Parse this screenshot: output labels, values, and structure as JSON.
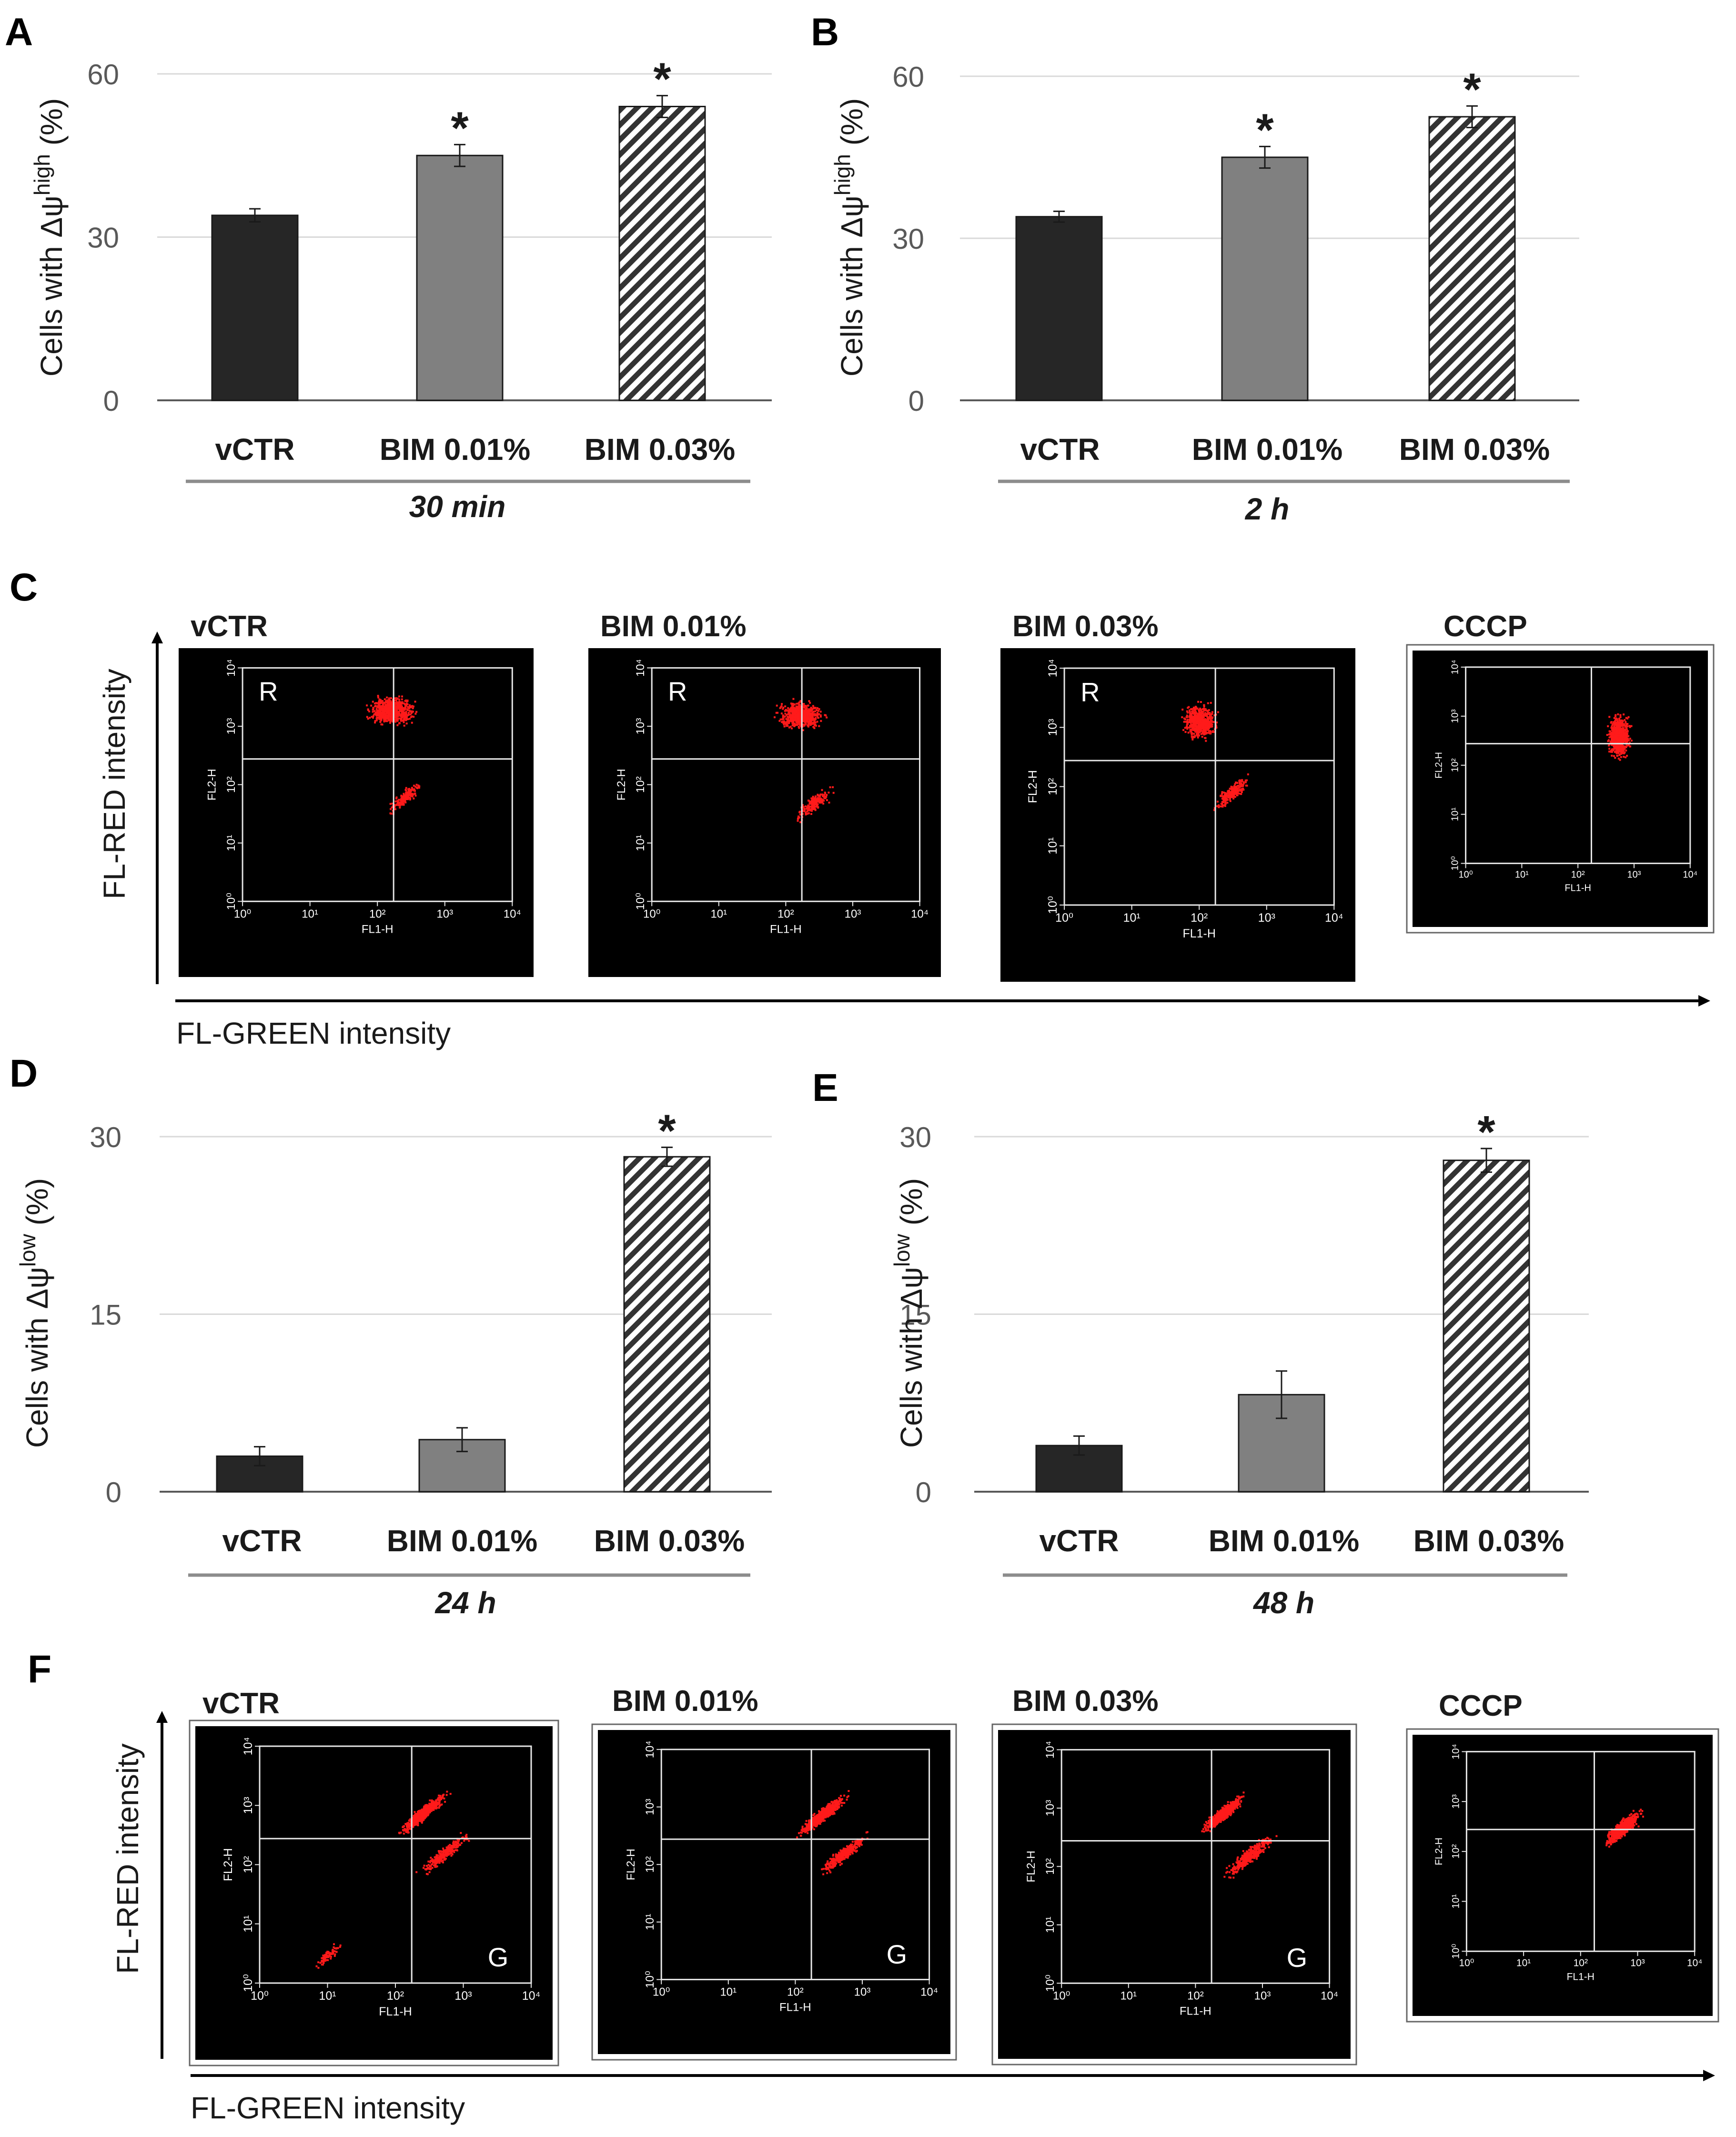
{
  "figure": {
    "panels": {
      "A": "A",
      "B": "B",
      "C": "C",
      "D": "D",
      "E": "E",
      "F": "F"
    }
  },
  "chart_data": [
    {
      "panel": "A",
      "type": "bar",
      "title": "",
      "ylabel_prefix": "Cells with Δψ",
      "ylabel_sup": "high",
      "ylabel_suffix": " (%)",
      "ylim": [
        0,
        60
      ],
      "yticks": [
        0,
        30,
        60
      ],
      "grid": true,
      "categories": [
        "vCTR",
        "BIM 0.01%",
        "BIM 0.03%"
      ],
      "values": [
        34,
        45,
        54
      ],
      "errors": [
        1.2,
        2,
        2
      ],
      "significant": [
        false,
        true,
        true
      ],
      "marker": "*",
      "group_label": "30 min"
    },
    {
      "panel": "B",
      "type": "bar",
      "title": "",
      "ylabel_prefix": "Cells with Δψ",
      "ylabel_sup": "high",
      "ylabel_suffix": " (%)",
      "ylim": [
        0,
        60
      ],
      "yticks": [
        0,
        30,
        60
      ],
      "grid": true,
      "categories": [
        "vCTR",
        "BIM 0.01%",
        "BIM 0.03%"
      ],
      "values": [
        34,
        45,
        52.5
      ],
      "errors": [
        1,
        2,
        2
      ],
      "significant": [
        false,
        true,
        true
      ],
      "marker": "*",
      "group_label": "2 h"
    },
    {
      "panel": "D",
      "type": "bar",
      "title": "",
      "ylabel_prefix": "Cells with Δψ",
      "ylabel_sup": "low",
      "ylabel_suffix": " (%)",
      "ylim": [
        0,
        30
      ],
      "yticks": [
        0,
        15,
        30
      ],
      "grid": true,
      "categories": [
        "vCTR",
        "BIM 0.01%",
        "BIM 0.03%"
      ],
      "values": [
        3,
        4.4,
        28.3
      ],
      "errors": [
        0.8,
        1,
        0.8
      ],
      "significant": [
        false,
        false,
        true
      ],
      "marker": "*",
      "group_label": "24 h"
    },
    {
      "panel": "E",
      "type": "bar",
      "title": "",
      "ylabel_prefix": "Cells with Δψ",
      "ylabel_sup": "low",
      "ylabel_suffix": " (%)",
      "ylim": [
        0,
        30
      ],
      "yticks": [
        0,
        15,
        30
      ],
      "grid": true,
      "categories": [
        "vCTR",
        "BIM 0.01%",
        "BIM 0.03%"
      ],
      "values": [
        3.9,
        8.2,
        28
      ],
      "errors": [
        0.8,
        2,
        1
      ],
      "significant": [
        false,
        false,
        true
      ],
      "marker": "*",
      "group_label": "48 h"
    }
  ],
  "flow_rows": [
    {
      "panel": "C",
      "y_axis_label": "FL-RED intensity",
      "x_axis_label": "FL-GREEN intensity",
      "plots": [
        {
          "title": "vCTR",
          "quadrant": "R"
        },
        {
          "title": "BIM 0.01%",
          "quadrant": "R"
        },
        {
          "title": "BIM 0.03%",
          "quadrant": "R"
        },
        {
          "title": "CCCP",
          "quadrant": ""
        }
      ]
    },
    {
      "panel": "F",
      "y_axis_label": "FL-RED intensity",
      "x_axis_label": "FL-GREEN intensity",
      "plots": [
        {
          "title": "vCTR",
          "quadrant": "G"
        },
        {
          "title": "BIM 0.01%",
          "quadrant": "G"
        },
        {
          "title": "BIM 0.03%",
          "quadrant": "G"
        },
        {
          "title": "CCCP",
          "quadrant": ""
        }
      ]
    }
  ],
  "cytometer": {
    "x_channel": "FL1-H",
    "y_channel": "FL2-H",
    "decades": [
      "10⁰",
      "10¹",
      "10²",
      "10³",
      "10⁴"
    ]
  },
  "colors": {
    "bar_dark": "#262626",
    "bar_gray": "#808080",
    "hatch": "#333333",
    "dots": "#ff1a1a",
    "plot_bg": "#000000"
  }
}
